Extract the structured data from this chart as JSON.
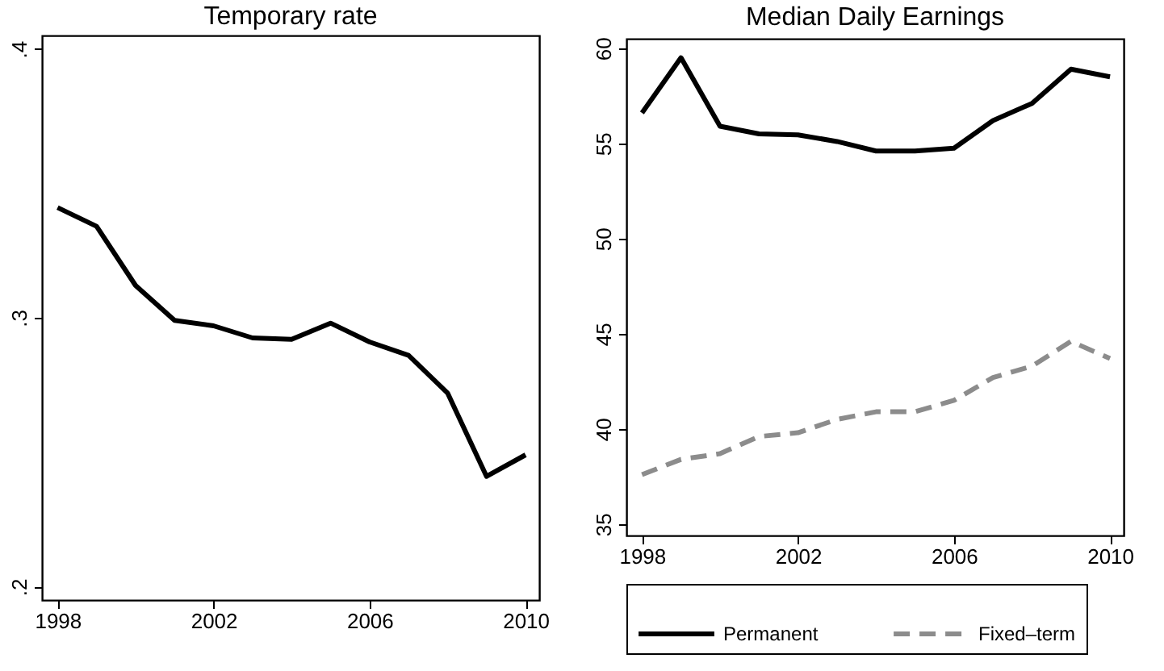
{
  "chart_data": [
    {
      "type": "line",
      "title": "Temporary rate",
      "x": [
        1998,
        1999,
        2000,
        2001,
        2002,
        2003,
        2004,
        2005,
        2006,
        2007,
        2008,
        2009,
        2010
      ],
      "values": [
        0.341,
        0.334,
        0.312,
        0.299,
        0.297,
        0.2925,
        0.292,
        0.298,
        0.291,
        0.286,
        0.272,
        0.241,
        0.249
      ],
      "color": "#000000",
      "line_style": "solid",
      "xlim": [
        1997.6,
        2010.35
      ],
      "xticks": [
        1998,
        2002,
        2006,
        2010
      ],
      "ylim": [
        0.195,
        0.405
      ],
      "yticks": [
        {
          "value": 0.2,
          "label": ".2"
        },
        {
          "value": 0.3,
          "label": ".3"
        },
        {
          "value": 0.4,
          "label": ".4"
        }
      ],
      "grid": false
    },
    {
      "type": "line",
      "title": "Median Daily Earnings",
      "x": [
        1998,
        1999,
        2000,
        2001,
        2002,
        2003,
        2004,
        2005,
        2006,
        2007,
        2008,
        2009,
        2010
      ],
      "series": [
        {
          "name": "Permanent",
          "color": "#000000",
          "line_style": "solid",
          "values": [
            56.6,
            59.5,
            55.9,
            55.5,
            55.45,
            55.1,
            54.6,
            54.6,
            54.75,
            56.2,
            57.1,
            58.9,
            58.5
          ]
        },
        {
          "name": "Fixed–term",
          "color": "#8c8c8c",
          "line_style": "dashed",
          "values": [
            37.6,
            38.4,
            38.7,
            39.6,
            39.8,
            40.5,
            40.9,
            40.9,
            41.5,
            42.7,
            43.3,
            44.6,
            43.7
          ]
        }
      ],
      "xlim": [
        1997.6,
        2010.35
      ],
      "xticks": [
        1998,
        2002,
        2006,
        2010
      ],
      "ylim": [
        34.4,
        60.5
      ],
      "yticks": [
        35,
        40,
        45,
        50,
        55,
        60
      ],
      "grid": false,
      "legend": "bottom"
    }
  ]
}
